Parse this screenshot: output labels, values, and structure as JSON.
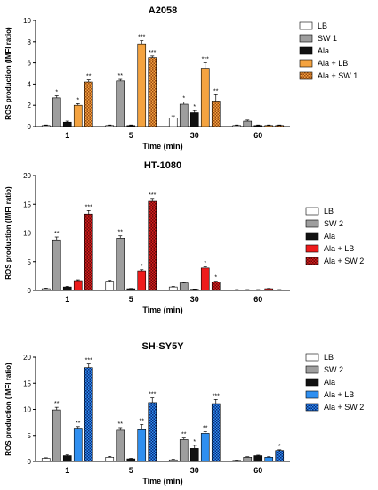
{
  "chart_data": [
    {
      "type": "bar",
      "title": "A2058",
      "xlabel": "Time (min)",
      "ylabel": "ROS production (IMFI ratio)",
      "ylim": [
        0,
        10
      ],
      "yticks": [
        0,
        2,
        4,
        6,
        8,
        10
      ],
      "grid": false,
      "legend_position": "top-right",
      "categories": [
        "1",
        "5",
        "30",
        "60"
      ],
      "series": [
        {
          "name": "LB",
          "fill": "#ffffff",
          "pattern": "none",
          "values": [
            0.1,
            0.1,
            0.8,
            0.1
          ],
          "errors": [
            0.05,
            0.05,
            0.2,
            0.05
          ],
          "sig": [
            "",
            "",
            "",
            ""
          ]
        },
        {
          "name": "SW 1",
          "fill": "#9e9e9e",
          "pattern": "none",
          "values": [
            2.7,
            4.3,
            2.1,
            0.5
          ],
          "errors": [
            0.2,
            0.15,
            0.2,
            0.1
          ],
          "sig": [
            "*",
            "**",
            "*",
            ""
          ]
        },
        {
          "name": "Ala",
          "fill": "#111111",
          "pattern": "none",
          "values": [
            0.4,
            0.1,
            1.3,
            0.1
          ],
          "errors": [
            0.1,
            0.05,
            0.2,
            0.05
          ],
          "sig": [
            "",
            "",
            "*",
            ""
          ]
        },
        {
          "name": "Ala +  LB",
          "fill": "#f4a340",
          "pattern": "none",
          "values": [
            2.0,
            7.8,
            5.5,
            0.1
          ],
          "errors": [
            0.15,
            0.3,
            0.5,
            0.05
          ],
          "sig": [
            "*",
            "***",
            "***",
            ""
          ]
        },
        {
          "name": "Ala + SW 1",
          "fill": "#f4a340",
          "pattern": "checker",
          "pattern_color": "#9a4a12",
          "values": [
            4.2,
            6.5,
            2.4,
            0.1
          ],
          "errors": [
            0.2,
            0.15,
            0.6,
            0.05
          ],
          "sig": [
            "**",
            "***",
            "**",
            ""
          ]
        }
      ]
    },
    {
      "type": "bar",
      "title": "HT-1080",
      "xlabel": "Time (min)",
      "ylabel": "ROS production (IMFI ratio)",
      "ylim": [
        0,
        20
      ],
      "yticks": [
        0,
        5,
        10,
        15,
        20
      ],
      "grid": false,
      "legend_position": "right",
      "categories": [
        "1",
        "5",
        "30",
        "60"
      ],
      "series": [
        {
          "name": "LB",
          "fill": "#ffffff",
          "pattern": "none",
          "values": [
            0.3,
            1.6,
            0.6,
            0.1
          ],
          "errors": [
            0.1,
            0.15,
            0.1,
            0.05
          ],
          "sig": [
            "",
            "",
            "",
            ""
          ]
        },
        {
          "name": "SW 2",
          "fill": "#9e9e9e",
          "pattern": "none",
          "values": [
            8.8,
            9.1,
            1.3,
            0.1
          ],
          "errors": [
            0.5,
            0.4,
            0.1,
            0.05
          ],
          "sig": [
            "**",
            "**",
            "",
            ""
          ]
        },
        {
          "name": "Ala",
          "fill": "#111111",
          "pattern": "none",
          "values": [
            0.6,
            0.3,
            0.2,
            0.1
          ],
          "errors": [
            0.1,
            0.05,
            0.05,
            0.05
          ],
          "sig": [
            "",
            "",
            "",
            ""
          ]
        },
        {
          "name": "Ala + LB",
          "fill": "#ee1c1c",
          "pattern": "none",
          "values": [
            1.7,
            3.4,
            3.9,
            0.3
          ],
          "errors": [
            0.15,
            0.2,
            0.2,
            0.05
          ],
          "sig": [
            "",
            "*",
            "*",
            ""
          ]
        },
        {
          "name": "Ala + SW 2",
          "fill": "#d81e1e",
          "pattern": "checker",
          "pattern_color": "#6a0a0a",
          "values": [
            13.3,
            15.5,
            1.5,
            0.1
          ],
          "errors": [
            0.6,
            0.5,
            0.1,
            0.05
          ],
          "sig": [
            "***",
            "***",
            "*",
            ""
          ]
        }
      ]
    },
    {
      "type": "bar",
      "title": "SH-SY5Y",
      "xlabel": "Time (min)",
      "ylabel": "ROS production (IMFI ratio)",
      "ylim": [
        0,
        20
      ],
      "yticks": [
        0,
        5,
        10,
        15,
        20
      ],
      "grid": false,
      "legend_position": "right",
      "categories": [
        "1",
        "5",
        "30",
        "60"
      ],
      "series": [
        {
          "name": "LB",
          "fill": "#ffffff",
          "pattern": "none",
          "values": [
            0.6,
            0.8,
            0.3,
            0.2
          ],
          "errors": [
            0.1,
            0.15,
            0.1,
            0.05
          ],
          "sig": [
            "",
            "",
            "",
            ""
          ]
        },
        {
          "name": "SW 2",
          "fill": "#9e9e9e",
          "pattern": "none",
          "values": [
            9.9,
            6.0,
            4.2,
            0.8
          ],
          "errors": [
            0.5,
            0.5,
            0.3,
            0.1
          ],
          "sig": [
            "**",
            "**",
            "**",
            ""
          ]
        },
        {
          "name": "Ala",
          "fill": "#111111",
          "pattern": "none",
          "values": [
            1.1,
            0.5,
            2.5,
            1.1
          ],
          "errors": [
            0.15,
            0.1,
            0.6,
            0.1
          ],
          "sig": [
            "",
            "",
            "*",
            ""
          ]
        },
        {
          "name": "Ala + LB",
          "fill": "#2f8ff0",
          "pattern": "none",
          "values": [
            6.4,
            6.1,
            5.4,
            0.8
          ],
          "errors": [
            0.3,
            1.0,
            0.3,
            0.1
          ],
          "sig": [
            "**",
            "**",
            "**",
            ""
          ]
        },
        {
          "name": "Ala + SW 2",
          "fill": "#2f8ff0",
          "pattern": "checker",
          "pattern_color": "#0a2a7a",
          "values": [
            18.0,
            11.3,
            11.1,
            2.1
          ],
          "errors": [
            0.7,
            0.9,
            0.8,
            0.15
          ],
          "sig": [
            "***",
            "***",
            "***",
            "*"
          ]
        }
      ]
    }
  ]
}
